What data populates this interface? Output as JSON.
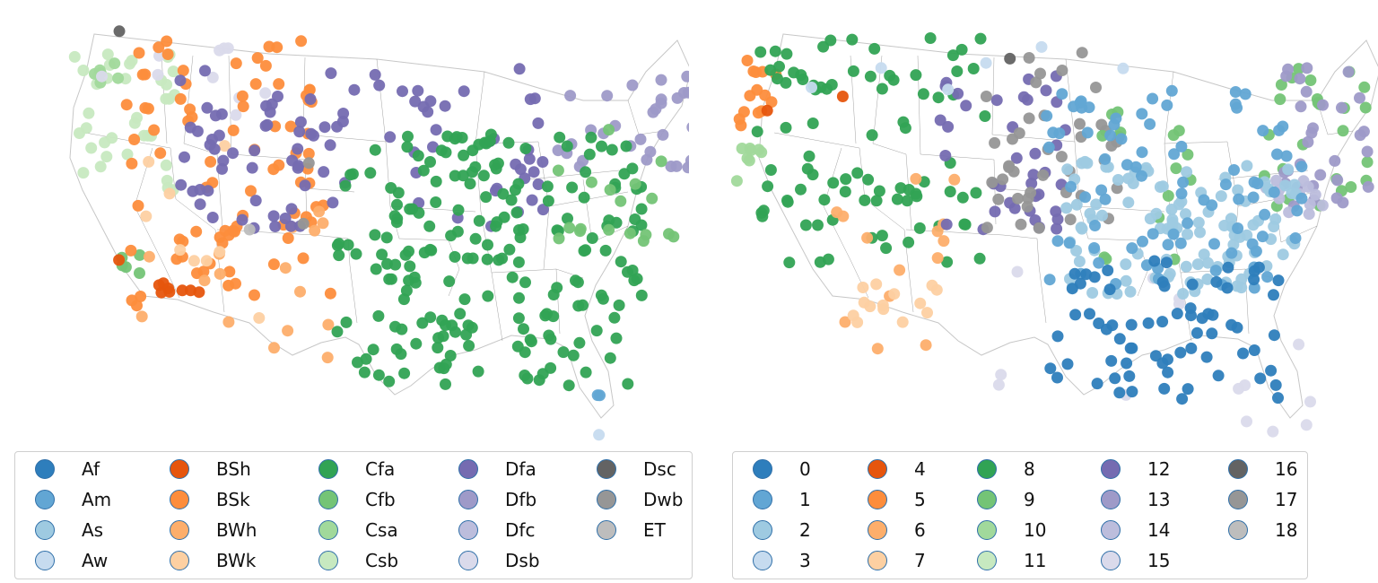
{
  "maps": [
    {
      "id": "koppen",
      "legend": [
        {
          "label": "Af",
          "color": "#2e7ebc"
        },
        {
          "label": "Am",
          "color": "#62a6d4"
        },
        {
          "label": "As",
          "color": "#9ecae1"
        },
        {
          "label": "Aw",
          "color": "#c6dbef"
        },
        {
          "label": "BSh",
          "color": "#e6550d"
        },
        {
          "label": "BSk",
          "color": "#fd8d3c"
        },
        {
          "label": "BWh",
          "color": "#fdae6b"
        },
        {
          "label": "BWk",
          "color": "#fdd0a2"
        },
        {
          "label": "Cfa",
          "color": "#31a354"
        },
        {
          "label": "Cfb",
          "color": "#74c476"
        },
        {
          "label": "Csa",
          "color": "#a1d99b"
        },
        {
          "label": "Csb",
          "color": "#c7e9c0"
        },
        {
          "label": "Dfa",
          "color": "#756bb1"
        },
        {
          "label": "Dfb",
          "color": "#9e9ac8"
        },
        {
          "label": "Dfc",
          "color": "#bcbddc"
        },
        {
          "label": "Dsb",
          "color": "#dadaeb"
        },
        {
          "label": "Dsc",
          "color": "#636363"
        },
        {
          "label": "Dwb",
          "color": "#969696"
        },
        {
          "label": "ET",
          "color": "#bdbdbd"
        }
      ]
    },
    {
      "id": "clusters",
      "legend": [
        {
          "label": "0",
          "color": "#2e7ebc"
        },
        {
          "label": "1",
          "color": "#62a6d4"
        },
        {
          "label": "2",
          "color": "#9ecae1"
        },
        {
          "label": "3",
          "color": "#c6dbef"
        },
        {
          "label": "4",
          "color": "#e6550d"
        },
        {
          "label": "5",
          "color": "#fd8d3c"
        },
        {
          "label": "6",
          "color": "#fdae6b"
        },
        {
          "label": "7",
          "color": "#fdd0a2"
        },
        {
          "label": "8",
          "color": "#31a354"
        },
        {
          "label": "9",
          "color": "#74c476"
        },
        {
          "label": "10",
          "color": "#a1d99b"
        },
        {
          "label": "11",
          "color": "#c7e9c0"
        },
        {
          "label": "12",
          "color": "#756bb1"
        },
        {
          "label": "13",
          "color": "#9e9ac8"
        },
        {
          "label": "14",
          "color": "#bcbddc"
        },
        {
          "label": "15",
          "color": "#dadaeb"
        },
        {
          "label": "16",
          "color": "#636363"
        },
        {
          "label": "17",
          "color": "#969696"
        },
        {
          "label": "18",
          "color": "#bdbdbd"
        }
      ]
    }
  ]
}
